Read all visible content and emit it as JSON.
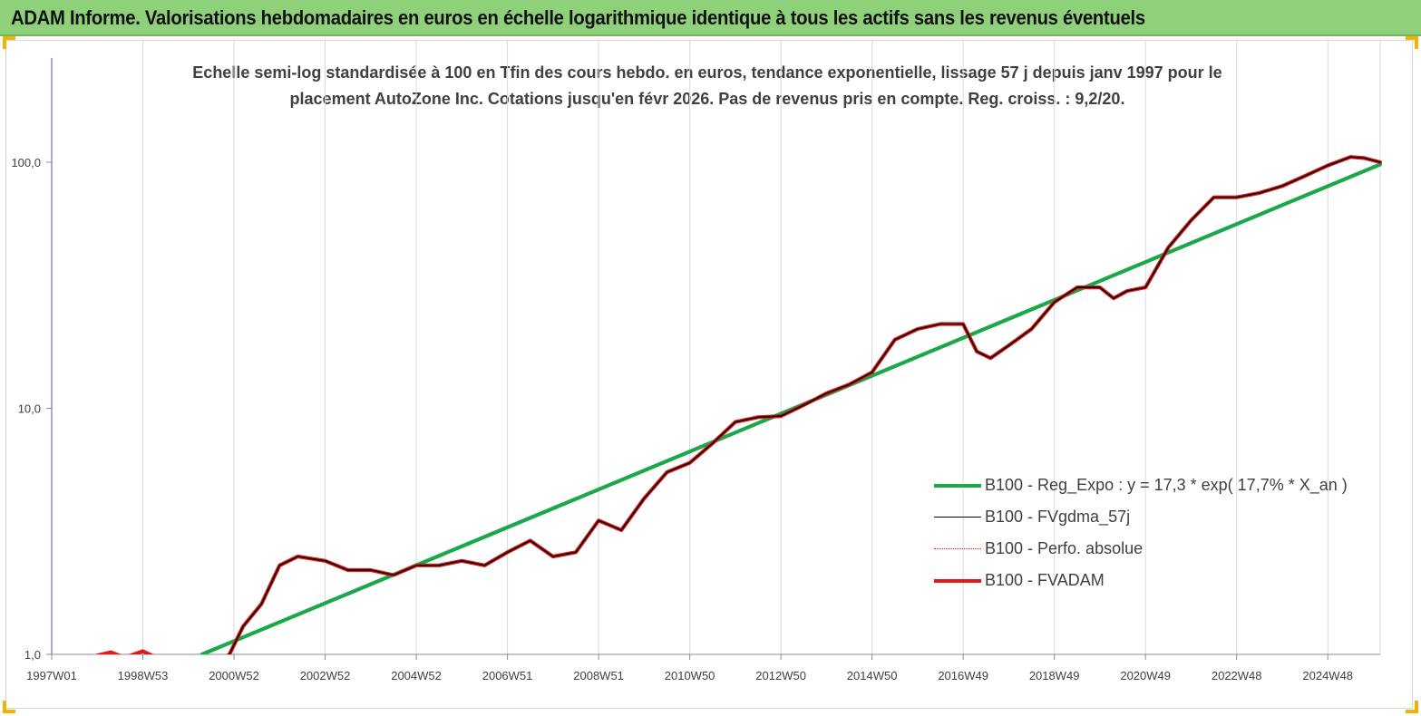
{
  "banner": {
    "title": "ADAM Informe. Valorisations hebdomadaires en euros en échelle logarithmique identique à tous les actifs sans les revenus éventuels",
    "bg_color": "#8fd17a"
  },
  "chart_data": {
    "type": "line",
    "title": "Echelle semi-log standardisée à 100 en Tfin des cours hebdo. en euros, tendance exponentielle, lissage 57 j depuis janv 1997 pour le placement AutoZone Inc. Cotations jusqu'en févr 2026.  Pas de revenus pris en compte. Reg. croiss. : 9,2/20.",
    "y_scale": "log",
    "ylim": [
      1,
      100
    ],
    "xlim": [
      1997.0,
      2026.15
    ],
    "y_ticks": [
      {
        "value": 1,
        "label": "1,0"
      },
      {
        "value": 10,
        "label": "10,0"
      },
      {
        "value": 100,
        "label": "100,0"
      }
    ],
    "x_ticks": [
      {
        "value": 1997.0,
        "label": "1997W01"
      },
      {
        "value": 1999.0,
        "label": "1998W53"
      },
      {
        "value": 2001.0,
        "label": "2000W52"
      },
      {
        "value": 2003.0,
        "label": "2002W52"
      },
      {
        "value": 2005.0,
        "label": "2004W52"
      },
      {
        "value": 2007.0,
        "label": "2006W51"
      },
      {
        "value": 2009.0,
        "label": "2008W51"
      },
      {
        "value": 2011.0,
        "label": "2010W50"
      },
      {
        "value": 2013.0,
        "label": "2012W50"
      },
      {
        "value": 2015.0,
        "label": "2014W50"
      },
      {
        "value": 2017.0,
        "label": "2016W49"
      },
      {
        "value": 2019.0,
        "label": "2018W49"
      },
      {
        "value": 2021.0,
        "label": "2020W49"
      },
      {
        "value": 2023.0,
        "label": "2022W48"
      },
      {
        "value": 2025.0,
        "label": "2024W48"
      }
    ],
    "grid": "vertical",
    "legend_position": "bottom-right",
    "series": [
      {
        "name": "B100 - Reg_Expo : y = 17,3 * exp( 17,7% *  X_an )",
        "color": "#1aa84a",
        "style": "solid-thick",
        "x": [
          2000.3,
          2026.15
        ],
        "y": [
          1.0,
          98
        ]
      },
      {
        "name": "B100 - FVgdma_57j",
        "color": "#000000",
        "style": "solid-thin",
        "x": [
          2000.5,
          2000.9,
          2001.2,
          2001.6,
          2002.0,
          2002.4,
          2003.0,
          2003.5,
          2004.0,
          2004.5,
          2005.0,
          2005.5,
          2006.0,
          2006.5,
          2007.0,
          2007.5,
          2008.0,
          2008.5,
          2009.0,
          2009.5,
          2010.0,
          2010.5,
          2011.0,
          2011.5,
          2012.0,
          2012.5,
          2013.0,
          2013.5,
          2014.0,
          2014.5,
          2015.0,
          2015.5,
          2016.0,
          2016.5,
          2017.0,
          2017.3,
          2017.6,
          2018.0,
          2018.5,
          2019.0,
          2019.5,
          2020.0,
          2020.3,
          2020.6,
          2021.0,
          2021.5,
          2022.0,
          2022.5,
          2023.0,
          2023.5,
          2024.0,
          2024.5,
          2025.0,
          2025.5,
          2025.8,
          2026.15
        ],
        "y": [
          0.9,
          1.0,
          1.3,
          1.6,
          2.3,
          2.5,
          2.4,
          2.2,
          2.2,
          2.1,
          2.3,
          2.3,
          2.4,
          2.3,
          2.6,
          2.9,
          2.5,
          2.6,
          3.5,
          3.2,
          4.3,
          5.5,
          6.0,
          7.2,
          8.8,
          9.2,
          9.3,
          10.3,
          11.5,
          12.5,
          14.0,
          19.0,
          21.0,
          22.0,
          22.0,
          17.0,
          16.0,
          18.0,
          21.0,
          27.0,
          31.0,
          31.0,
          28.0,
          30.0,
          31.0,
          45.0,
          58.0,
          72.0,
          72.0,
          75.0,
          80.0,
          88.0,
          97.0,
          105.0,
          104.0,
          100.0
        ]
      },
      {
        "name": "B100 - Perfo. absolue",
        "color": "#e31a1a",
        "style": "dotted",
        "x": [
          1998.0,
          1998.3,
          1998.6,
          1999.0,
          1999.4,
          1999.8,
          2000.2,
          2000.5,
          2000.9,
          2001.2,
          2001.6,
          2002.0,
          2002.4,
          2003.0,
          2003.5,
          2004.0,
          2004.5,
          2005.0,
          2005.5,
          2006.0,
          2006.5,
          2007.0,
          2007.5,
          2008.0,
          2008.5,
          2009.0,
          2009.5,
          2010.0,
          2010.5,
          2011.0,
          2011.5,
          2012.0,
          2012.5,
          2013.0,
          2013.5,
          2014.0,
          2014.5,
          2015.0,
          2015.5,
          2016.0,
          2016.5,
          2017.0,
          2017.3,
          2017.6,
          2018.0,
          2018.5,
          2019.0,
          2019.5,
          2020.0,
          2020.3,
          2020.6,
          2021.0,
          2021.5,
          2022.0,
          2022.5,
          2023.0,
          2023.5,
          2024.0,
          2024.5,
          2025.0,
          2025.5,
          2025.8,
          2026.15
        ],
        "y": [
          0.99,
          1.02,
          0.97,
          1.03,
          0.95,
          0.92,
          0.88,
          0.9,
          1.0,
          1.3,
          1.6,
          2.3,
          2.5,
          2.4,
          2.2,
          2.2,
          2.1,
          2.3,
          2.3,
          2.4,
          2.3,
          2.6,
          2.9,
          2.5,
          2.6,
          3.5,
          3.2,
          4.3,
          5.5,
          6.0,
          7.2,
          8.8,
          9.2,
          9.3,
          10.3,
          11.5,
          12.5,
          14.0,
          19.0,
          21.0,
          22.0,
          22.0,
          17.0,
          16.0,
          18.0,
          21.0,
          27.0,
          31.0,
          31.0,
          28.0,
          30.0,
          31.0,
          45.0,
          58.0,
          72.0,
          72.0,
          75.0,
          80.0,
          88.0,
          97.0,
          105.0,
          104.0,
          100.0
        ]
      },
      {
        "name": "B100 - FVADAM",
        "color": "#e31a1a",
        "style": "solid-thick",
        "x": [
          1998.0,
          1998.3,
          1998.6,
          1999.0,
          1999.4,
          1999.8,
          2000.2,
          2000.5,
          2000.9,
          2001.2,
          2001.6,
          2002.0,
          2002.4,
          2003.0,
          2003.5,
          2004.0,
          2004.5,
          2005.0,
          2005.5,
          2006.0,
          2006.5,
          2007.0,
          2007.5,
          2008.0,
          2008.5,
          2009.0,
          2009.5,
          2010.0,
          2010.5,
          2011.0,
          2011.5,
          2012.0,
          2012.5,
          2013.0,
          2013.5,
          2014.0,
          2014.5,
          2015.0,
          2015.5,
          2016.0,
          2016.5,
          2017.0,
          2017.3,
          2017.6,
          2018.0,
          2018.5,
          2019.0,
          2019.5,
          2020.0,
          2020.3,
          2020.6,
          2021.0,
          2021.5,
          2022.0,
          2022.5,
          2023.0,
          2023.5,
          2024.0,
          2024.5,
          2025.0,
          2025.5,
          2025.8,
          2026.15
        ],
        "y": [
          0.99,
          1.02,
          0.97,
          1.03,
          0.95,
          0.92,
          0.88,
          0.9,
          1.0,
          1.3,
          1.6,
          2.3,
          2.5,
          2.4,
          2.2,
          2.2,
          2.1,
          2.3,
          2.3,
          2.4,
          2.3,
          2.6,
          2.9,
          2.5,
          2.6,
          3.5,
          3.2,
          4.3,
          5.5,
          6.0,
          7.2,
          8.8,
          9.2,
          9.3,
          10.3,
          11.5,
          12.5,
          14.0,
          19.0,
          21.0,
          22.0,
          22.0,
          17.0,
          16.0,
          18.0,
          21.0,
          27.0,
          31.0,
          31.0,
          28.0,
          30.0,
          31.0,
          45.0,
          58.0,
          72.0,
          72.0,
          75.0,
          80.0,
          88.0,
          97.0,
          105.0,
          104.0,
          100.0
        ]
      }
    ]
  }
}
